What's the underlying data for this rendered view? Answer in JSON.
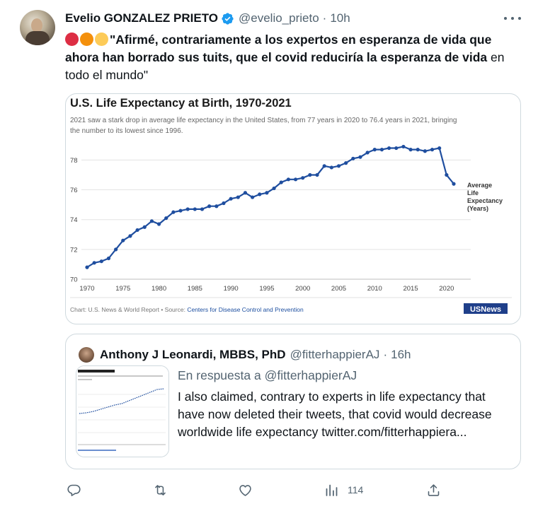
{
  "tweet": {
    "author_name": "Evelio GONZALEZ PRIETO",
    "author_handle": "@evelio_prieto",
    "separator": "·",
    "time": "10h",
    "text_bold": "\"Afirmé, contrariamente a los expertos en esperanza de vida que ahora han borrado sus tuits, que el covid reduciría la esperanza de vida",
    "text_normal": " en todo el mundo\"",
    "emoji_colors": [
      "#dd2e44",
      "#f4900c",
      "#fdcb58"
    ]
  },
  "chart_card": {
    "chart_data": {
      "type": "line",
      "title": "U.S. Life Expectancy at Birth, 1970-2021",
      "subtitle_line1": "2021 saw a stark drop in average life expectancy in the United States, from 77 years in 2020 to 76.4 years in 2021, bringing",
      "subtitle_line2": "the number to its lowest since 1996.",
      "series_label": [
        "Average",
        "Life",
        "Expectancy",
        "(Years)"
      ],
      "x": [
        1970,
        1971,
        1972,
        1973,
        1974,
        1975,
        1976,
        1977,
        1978,
        1979,
        1980,
        1981,
        1982,
        1983,
        1984,
        1985,
        1986,
        1987,
        1988,
        1989,
        1990,
        1991,
        1992,
        1993,
        1994,
        1995,
        1996,
        1997,
        1998,
        1999,
        2000,
        2001,
        2002,
        2003,
        2004,
        2005,
        2006,
        2007,
        2008,
        2009,
        2010,
        2011,
        2012,
        2013,
        2014,
        2015,
        2016,
        2017,
        2018,
        2019,
        2020,
        2021
      ],
      "y": [
        70.8,
        71.1,
        71.2,
        71.4,
        72.0,
        72.6,
        72.9,
        73.3,
        73.5,
        73.9,
        73.7,
        74.1,
        74.5,
        74.6,
        74.7,
        74.7,
        74.7,
        74.9,
        74.9,
        75.1,
        75.4,
        75.5,
        75.8,
        75.5,
        75.7,
        75.8,
        76.1,
        76.5,
        76.7,
        76.7,
        76.8,
        77.0,
        77.0,
        77.6,
        77.5,
        77.6,
        77.8,
        78.1,
        78.2,
        78.5,
        78.7,
        78.7,
        78.8,
        78.8,
        78.9,
        78.7,
        78.7,
        78.6,
        78.7,
        78.8,
        77.0,
        76.4
      ],
      "xticks": [
        1970,
        1975,
        1980,
        1985,
        1990,
        1995,
        2000,
        2005,
        2010,
        2015,
        2020
      ],
      "yticks": [
        70,
        72,
        74,
        76,
        78
      ],
      "xlim": [
        1970,
        2021
      ],
      "ylim": [
        70,
        79.3
      ],
      "grid": true,
      "line_color": "#1f4e9f"
    },
    "source_prefix": "Chart: U.S. News & World Report • Source: ",
    "source_link": "Centers for Disease Control and Prevention",
    "brand": "USNews"
  },
  "quoted_tweet": {
    "author_name": "Anthony J Leonardi, MBBS, PhD",
    "author_handle": "@fitterhappierAJ",
    "separator": "·",
    "time": "16h",
    "reply_to": "En respuesta a @fitterhappierAJ",
    "text": "I also claimed, contrary to experts in life expectancy that have now deleted their tweets, that covid would decrease worldwide life expectancy twitter.com/fitterhappiera..."
  },
  "actions": {
    "views": "114"
  },
  "colors": {
    "verified": "#1d9bf0",
    "muted": "#536471",
    "link": "#1d4fa0"
  }
}
